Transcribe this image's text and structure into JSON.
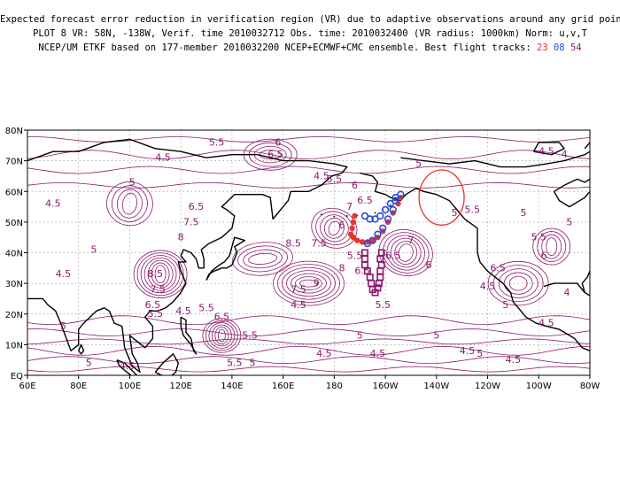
{
  "header": {
    "line1": "Expected forecast error reduction in verification region (VR) due to adaptive observations around any grid point.",
    "line2": "PLOT 8 VR: 58N, -138W, Verif. time 2010032712 Obs. time: 2010032400 (VR radius: 1000km) Norm: u,v,T",
    "line3_prefix": "NCEP/UM ETKF based on 177-member 2010032200 NCEP+ECMWF+CMC ensemble. Best flight tracks:",
    "tracks": [
      {
        "label": "23",
        "color": "#e8342f"
      },
      {
        "label": "08",
        "color": "#2a4bd7"
      },
      {
        "label": "54",
        "color": "#8b1a6b"
      }
    ]
  },
  "map": {
    "lon_range": [
      60,
      280
    ],
    "lat_range": [
      0,
      80
    ],
    "x_ticks": [
      "60E",
      "80E",
      "100E",
      "120E",
      "140E",
      "160E",
      "180",
      "160W",
      "140W",
      "120W",
      "100W",
      "80W"
    ],
    "y_ticks": [
      "EQ",
      "10N",
      "20N",
      "30N",
      "40N",
      "50N",
      "60N",
      "70N",
      "80N"
    ],
    "contour_color": "#8b1a6b",
    "verification_region": {
      "lat": 58,
      "lon": -138,
      "radius_km": 1000,
      "color": "#e8342f"
    },
    "contour_labels": [
      {
        "t": "5.5",
        "lon": 134,
        "lat": 75
      },
      {
        "t": "6",
        "lon": 158,
        "lat": 75
      },
      {
        "t": "6.5",
        "lon": 157,
        "lat": 71
      },
      {
        "t": "4.5",
        "lon": 113,
        "lat": 70
      },
      {
        "t": "5",
        "lon": 101,
        "lat": 62
      },
      {
        "t": "4.5",
        "lon": 70,
        "lat": 55
      },
      {
        "t": "6.5",
        "lon": 126,
        "lat": 54
      },
      {
        "t": "7.5",
        "lon": 124,
        "lat": 49
      },
      {
        "t": "8",
        "lon": 120,
        "lat": 44
      },
      {
        "t": "8.5",
        "lon": 164,
        "lat": 42
      },
      {
        "t": "7.5",
        "lon": 174,
        "lat": 42
      },
      {
        "t": "7",
        "lon": 186,
        "lat": 54
      },
      {
        "t": "6",
        "lon": 183,
        "lat": 48
      },
      {
        "t": "6.5",
        "lon": 192,
        "lat": 56
      },
      {
        "t": "8",
        "lon": 183,
        "lat": 34
      },
      {
        "t": "9",
        "lon": 173,
        "lat": 29
      },
      {
        "t": "7.5",
        "lon": 166,
        "lat": 27
      },
      {
        "t": "5.5",
        "lon": 188,
        "lat": 38
      },
      {
        "t": "5",
        "lon": 86,
        "lat": 40
      },
      {
        "t": "4.5",
        "lon": 74,
        "lat": 32
      },
      {
        "t": "8.5",
        "lon": 110,
        "lat": 32
      },
      {
        "t": "7.5",
        "lon": 111,
        "lat": 27
      },
      {
        "t": "6.5",
        "lon": 109,
        "lat": 22
      },
      {
        "t": "5.5",
        "lon": 110,
        "lat": 19
      },
      {
        "t": "4.5",
        "lon": 121,
        "lat": 20
      },
      {
        "t": "5.5",
        "lon": 130,
        "lat": 21
      },
      {
        "t": "6.5",
        "lon": 136,
        "lat": 18
      },
      {
        "t": "5",
        "lon": 74,
        "lat": 15
      },
      {
        "t": "4.5",
        "lon": 166,
        "lat": 22
      },
      {
        "t": "5",
        "lon": 190,
        "lat": 12
      },
      {
        "t": "5.5",
        "lon": 147,
        "lat": 12
      },
      {
        "t": "5",
        "lon": 84,
        "lat": 3
      },
      {
        "t": "4.5",
        "lon": 99,
        "lat": 2
      },
      {
        "t": "5.5",
        "lon": 141,
        "lat": 3
      },
      {
        "t": "5",
        "lon": 148,
        "lat": 3
      },
      {
        "t": "4.5",
        "lon": 176,
        "lat": 6
      },
      {
        "t": "5",
        "lon": 213,
        "lat": 68
      },
      {
        "t": "4.5",
        "lon": 175,
        "lat": 64
      },
      {
        "t": "5.5",
        "lon": 180,
        "lat": 63
      },
      {
        "t": "6",
        "lon": 188,
        "lat": 61
      },
      {
        "t": "5",
        "lon": 227,
        "lat": 52
      },
      {
        "t": "5.5",
        "lon": 234,
        "lat": 53
      },
      {
        "t": "7",
        "lon": 210,
        "lat": 43
      },
      {
        "t": "6.5",
        "lon": 203,
        "lat": 38
      },
      {
        "t": "6",
        "lon": 217,
        "lat": 35
      },
      {
        "t": "5.5",
        "lon": 199,
        "lat": 22
      },
      {
        "t": "5",
        "lon": 220,
        "lat": 12
      },
      {
        "t": "4.5",
        "lon": 197,
        "lat": 6
      },
      {
        "t": "4.5",
        "lon": 232,
        "lat": 7
      },
      {
        "t": "5",
        "lon": 237,
        "lat": 6
      },
      {
        "t": "4.5",
        "lon": 250,
        "lat": 4
      },
      {
        "t": "6.5",
        "lon": 244,
        "lat": 34
      },
      {
        "t": "4.5",
        "lon": 240,
        "lat": 28
      },
      {
        "t": "5.5",
        "lon": 260,
        "lat": 44
      },
      {
        "t": "5",
        "lon": 254,
        "lat": 52
      },
      {
        "t": "6",
        "lon": 262,
        "lat": 38
      },
      {
        "t": "4",
        "lon": 271,
        "lat": 26
      },
      {
        "t": "5",
        "lon": 247,
        "lat": 22
      },
      {
        "t": "4.5",
        "lon": 263,
        "lat": 16
      },
      {
        "t": "4.5",
        "lon": 263,
        "lat": 72
      },
      {
        "t": "4",
        "lon": 270,
        "lat": 71
      },
      {
        "t": "5",
        "lon": 272,
        "lat": 49
      },
      {
        "t": "6.5",
        "lon": 191,
        "lat": 33
      }
    ],
    "flight_tracks": [
      {
        "label": "23",
        "color": "#e8342f",
        "marker": "dot",
        "points": [
          [
            188,
            52
          ],
          [
            187.5,
            50
          ],
          [
            187,
            48
          ],
          [
            186.5,
            46
          ],
          [
            187.5,
            45
          ],
          [
            189,
            44
          ],
          [
            191,
            43.5
          ],
          [
            193,
            43.5
          ],
          [
            195,
            44
          ],
          [
            197,
            45
          ],
          [
            199,
            47
          ],
          [
            201,
            50
          ],
          [
            203,
            53
          ],
          [
            205,
            56
          ],
          [
            206,
            58
          ]
        ]
      },
      {
        "label": "08",
        "color": "#2a4bd7",
        "marker": "circle",
        "points": [
          [
            192,
            52
          ],
          [
            194,
            51
          ],
          [
            196,
            51
          ],
          [
            198,
            52
          ],
          [
            200,
            54
          ],
          [
            202,
            56
          ],
          [
            204,
            58
          ],
          [
            206,
            59
          ],
          [
            204,
            57
          ],
          [
            203,
            54
          ],
          [
            201,
            51
          ],
          [
            199,
            48
          ],
          [
            197,
            46
          ],
          [
            195,
            44
          ],
          [
            193,
            43
          ]
        ]
      },
      {
        "label": "54",
        "color": "#8b1a6b",
        "marker": "square",
        "points": [
          [
            192,
            40
          ],
          [
            192,
            38
          ],
          [
            192,
            36
          ],
          [
            193,
            34
          ],
          [
            194,
            32
          ],
          [
            194.5,
            30
          ],
          [
            195,
            28
          ],
          [
            196,
            27
          ],
          [
            197,
            28.5
          ],
          [
            197.5,
            30
          ],
          [
            198,
            32
          ],
          [
            198,
            34
          ],
          [
            198.5,
            36
          ],
          [
            198,
            38
          ],
          [
            198.5,
            40
          ]
        ]
      }
    ]
  }
}
